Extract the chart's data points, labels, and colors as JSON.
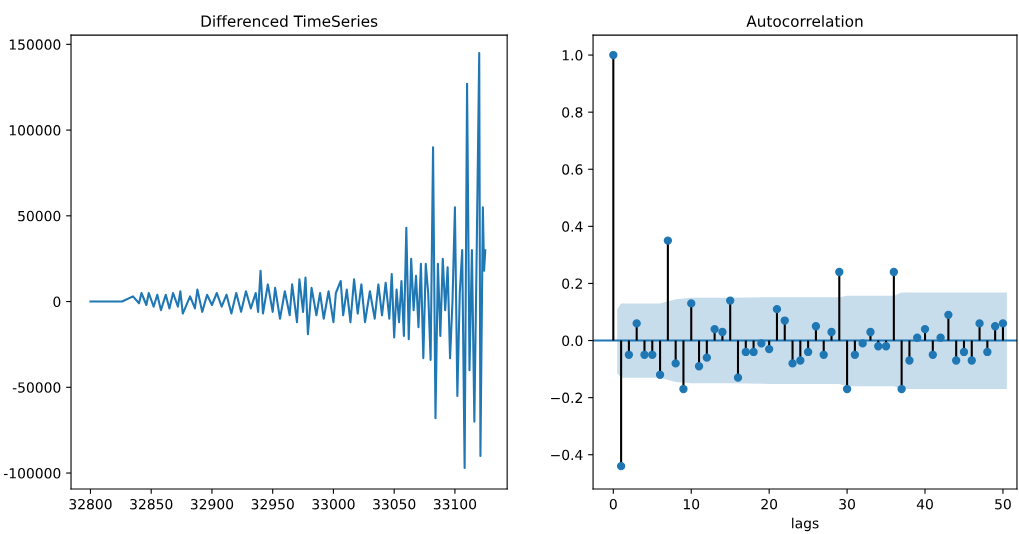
{
  "chart_data": [
    {
      "type": "line",
      "title": "Differenced TimeSeries",
      "grid": false,
      "marker": "none",
      "line_style": "solid",
      "xlim": [
        32784,
        33143
      ],
      "ylim": [
        -109300,
        155400
      ],
      "xticks": [
        32800,
        32850,
        32900,
        32950,
        33000,
        33050,
        33100
      ],
      "yticks": [
        -100000,
        -50000,
        0,
        50000,
        100000,
        150000
      ],
      "series": [
        {
          "color": "#1f77b4",
          "x": [
            32800,
            32826,
            32835,
            32840,
            32842,
            32846,
            32848,
            32852,
            32855,
            32858,
            32862,
            32865,
            32868,
            32872,
            32874,
            32876,
            32882,
            32886,
            32888,
            32892,
            32896,
            32900,
            32904,
            32908,
            32912,
            32916,
            32920,
            32924,
            32928,
            32932,
            32936,
            32938,
            32940,
            32942,
            32946,
            32950,
            32952,
            32956,
            32960,
            32964,
            32966,
            32970,
            32972,
            32975,
            32977,
            32979,
            32982,
            32986,
            32989,
            32992,
            32996,
            33000,
            33002,
            33006,
            33008,
            33011,
            33014,
            33017,
            33020,
            33023,
            33026,
            33030,
            33034,
            33037,
            33040,
            33043,
            33046,
            33048,
            33050,
            33052,
            33054,
            33056,
            33058,
            33060,
            33062,
            33064,
            33066,
            33068,
            33070,
            33072,
            33074,
            33076,
            33078,
            33080,
            33082,
            33084,
            33086,
            33088,
            33090,
            33092,
            33094,
            33096,
            33098,
            33100,
            33102,
            33104,
            33106,
            33108,
            33110,
            33112,
            33114,
            33116,
            33118,
            33120,
            33121,
            33123,
            33124,
            33125
          ],
          "values": [
            0,
            0,
            3000,
            -1000,
            5000,
            -2000,
            5000,
            -3000,
            4000,
            -5000,
            4000,
            -4000,
            5000,
            -3000,
            6000,
            -7000,
            3000,
            -4000,
            7000,
            -6000,
            4000,
            -2000,
            5000,
            -3000,
            4000,
            -7000,
            5000,
            -6000,
            6000,
            -4000,
            5000,
            -6000,
            18000,
            -7000,
            10000,
            -6000,
            8000,
            -10000,
            6000,
            -8000,
            10000,
            -12000,
            13000,
            -6000,
            14000,
            -19000,
            8000,
            -8000,
            5000,
            -10000,
            6000,
            -12000,
            5000,
            12000,
            -8000,
            7000,
            -12000,
            13000,
            -7000,
            10000,
            -12000,
            6000,
            -10000,
            10000,
            -8000,
            11000,
            -10000,
            16000,
            -21000,
            7000,
            -12000,
            12000,
            -20000,
            43000,
            -22000,
            25000,
            -5000,
            15000,
            -15000,
            22000,
            -33000,
            22000,
            5000,
            -34000,
            90000,
            -68000,
            22000,
            -20000,
            25000,
            -5000,
            20000,
            -33000,
            0,
            55000,
            -55000,
            5000,
            30000,
            -97000,
            127000,
            -40000,
            30000,
            -70000,
            33000,
            145000,
            -90000,
            55000,
            18000,
            30000
          ]
        }
      ]
    },
    {
      "type": "lollipop",
      "title": "Autocorrelation",
      "xlabel": "lags",
      "grid": false,
      "marker": "circle",
      "xlim": [
        -2.6,
        51.8
      ],
      "ylim": [
        -0.52,
        1.07
      ],
      "xticks": [
        0,
        10,
        20,
        30,
        40,
        50
      ],
      "yticks": [
        {
          "value": -0.4,
          "label": "−0.4"
        },
        {
          "value": -0.2,
          "label": "−0.2"
        },
        {
          "value": 0,
          "label": "0.0"
        },
        {
          "value": 0.2,
          "label": "0.2"
        },
        {
          "value": 0.4,
          "label": "0.4"
        },
        {
          "value": 0.6,
          "label": "0.6"
        },
        {
          "value": 0.8,
          "label": "0.8"
        },
        {
          "value": 1,
          "label": "1.0"
        }
      ],
      "series": [
        {
          "type": "line",
          "marker": "none",
          "color": "#1f77b4",
          "x": [
            -2.6,
            0.5,
            1,
            6,
            8,
            10,
            15,
            20,
            29,
            30,
            36,
            37,
            50.5,
            51.8
          ],
          "values": [
            0,
            0,
            0,
            0,
            0,
            0,
            0,
            0,
            0,
            0,
            0,
            0,
            0,
            0
          ],
          "upper": [
            null,
            0.11,
            0.13,
            0.13,
            0.145,
            0.15,
            0.15,
            0.152,
            0.152,
            0.157,
            0.157,
            0.168,
            0.168,
            null
          ],
          "lower": [
            null,
            -0.115,
            -0.13,
            -0.13,
            -0.145,
            -0.15,
            -0.15,
            -0.152,
            -0.152,
            -0.16,
            -0.16,
            -0.17,
            -0.17,
            null
          ]
        },
        {
          "type": "lollipop",
          "color": "#1f77b4",
          "x": [
            0,
            1,
            2,
            3,
            4,
            5,
            6,
            7,
            8,
            9,
            10,
            11,
            12,
            13,
            14,
            15,
            16,
            17,
            18,
            19,
            20,
            21,
            22,
            23,
            24,
            25,
            26,
            27,
            28,
            29,
            30,
            31,
            32,
            33,
            34,
            35,
            36,
            37,
            38,
            39,
            40,
            41,
            42,
            43,
            44,
            45,
            46,
            47,
            48,
            49,
            50
          ],
          "values": [
            1.0,
            -0.44,
            -0.05,
            0.06,
            -0.05,
            -0.05,
            -0.12,
            0.35,
            -0.08,
            -0.17,
            0.13,
            -0.09,
            -0.06,
            0.04,
            0.03,
            0.14,
            -0.13,
            -0.04,
            -0.04,
            -0.01,
            -0.03,
            0.11,
            0.07,
            -0.08,
            -0.07,
            -0.04,
            0.05,
            -0.05,
            0.03,
            0.24,
            -0.17,
            -0.05,
            -0.01,
            0.03,
            -0.02,
            -0.02,
            0.24,
            -0.17,
            -0.07,
            0.01,
            0.04,
            -0.05,
            0.01,
            0.09,
            -0.07,
            -0.04,
            -0.07,
            0.06,
            -0.04,
            0.05,
            0.06
          ]
        }
      ]
    }
  ]
}
